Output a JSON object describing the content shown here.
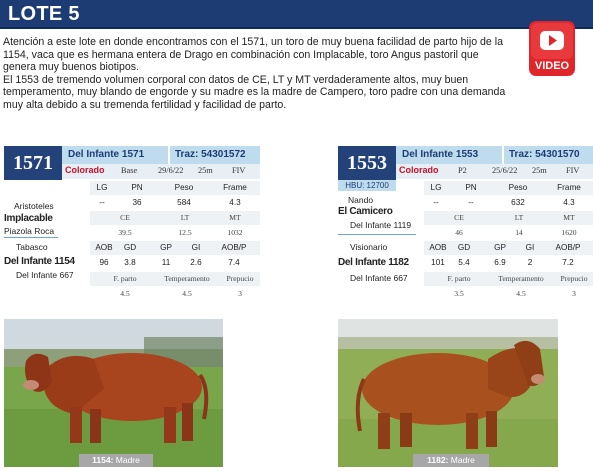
{
  "header": {
    "title": "LOTE 5"
  },
  "description": [
    "Atención a este lote en donde encontramos con el 1571, un toro de muy buena facilidad de parto hijo de la 1154, vaca que es hermana entera de Drago en combinación con Implacable, toro Angus pastoril que genera muy buenos biotipos.",
    "El 1553 de tremendo volumen corporal con datos de CE, LT y MT verdaderamente altos, muy buen temperamento, muy blando de engorde y su madre es la madre de Campero, toro padre con una demanda muy alta debido a su tremenda fertilidad y facilidad de parto."
  ],
  "video_button": {
    "label": "VIDEO",
    "icon": "play-icon",
    "color": "#e0262b"
  },
  "colors": {
    "navy": "#1d3c74",
    "lightblue": "#bfdcef",
    "red": "#c8102e"
  },
  "animals": [
    {
      "id": "1571",
      "name": "Del Infante 1571",
      "traz": "Traz: 54301572",
      "color": "Colorado",
      "cat": "Base",
      "date": "29/6/22",
      "age": "25m",
      "reg": "FIV",
      "hbu": "",
      "pedigree": {
        "sire_sire": "Aristoteles",
        "sire": "Implacable",
        "sire_dam": "Piazola Roca",
        "dam_sire": "Tabasco",
        "dam": "Del Infante 1154",
        "dam_dam": "Del Infante 667"
      },
      "measures_headers": [
        "LG",
        "PN",
        "Peso",
        "Frame"
      ],
      "measures_values": [
        "--",
        "36",
        "584",
        "4.3"
      ],
      "repro_headers": [
        "CE",
        "LT",
        "MT"
      ],
      "repro_values": [
        "39.5",
        "12.5",
        "1032"
      ],
      "dep_headers": [
        "AOB",
        "GD",
        "GP",
        "GI",
        "AOB/P"
      ],
      "dep_values": [
        "96",
        "3.8",
        "11",
        "2.6",
        "7.4"
      ],
      "temp_headers": [
        "F. parto",
        "Temperamento",
        "Prepucio"
      ],
      "temp_values": [
        "4.5",
        "4.5",
        "3"
      ],
      "photo_caption_num": "1154:",
      "photo_caption_text": " Madre"
    },
    {
      "id": "1553",
      "name": "Del Infante 1553",
      "traz": "Traz: 54301570",
      "color": "Colorado",
      "cat": "P2",
      "date": "25/6/22",
      "age": "25m",
      "reg": "FIV",
      "hbu": "HBU: 12700",
      "pedigree": {
        "sire_sire": "Nando",
        "sire": "El Camicero",
        "sire_dam": "Del Infante 1119",
        "dam_sire": "Visionario",
        "dam": "Del Infante 1182",
        "dam_dam": "Del Infante 667"
      },
      "measures_headers": [
        "LG",
        "PN",
        "Peso",
        "Frame"
      ],
      "measures_values": [
        "--",
        "--",
        "632",
        "4.3"
      ],
      "repro_headers": [
        "CE",
        "LT",
        "MT"
      ],
      "repro_values": [
        "46",
        "14",
        "1620"
      ],
      "dep_headers": [
        "AOB",
        "GD",
        "GP",
        "GI",
        "AOB/P"
      ],
      "dep_values": [
        "101",
        "5.4",
        "6.9",
        "2",
        "7.2"
      ],
      "temp_headers": [
        "F. parto",
        "Temperamento",
        "Prepucio"
      ],
      "temp_values": [
        "3.5",
        "4.5",
        "3"
      ],
      "photo_caption_num": "1182:",
      "photo_caption_text": " Madre"
    }
  ]
}
